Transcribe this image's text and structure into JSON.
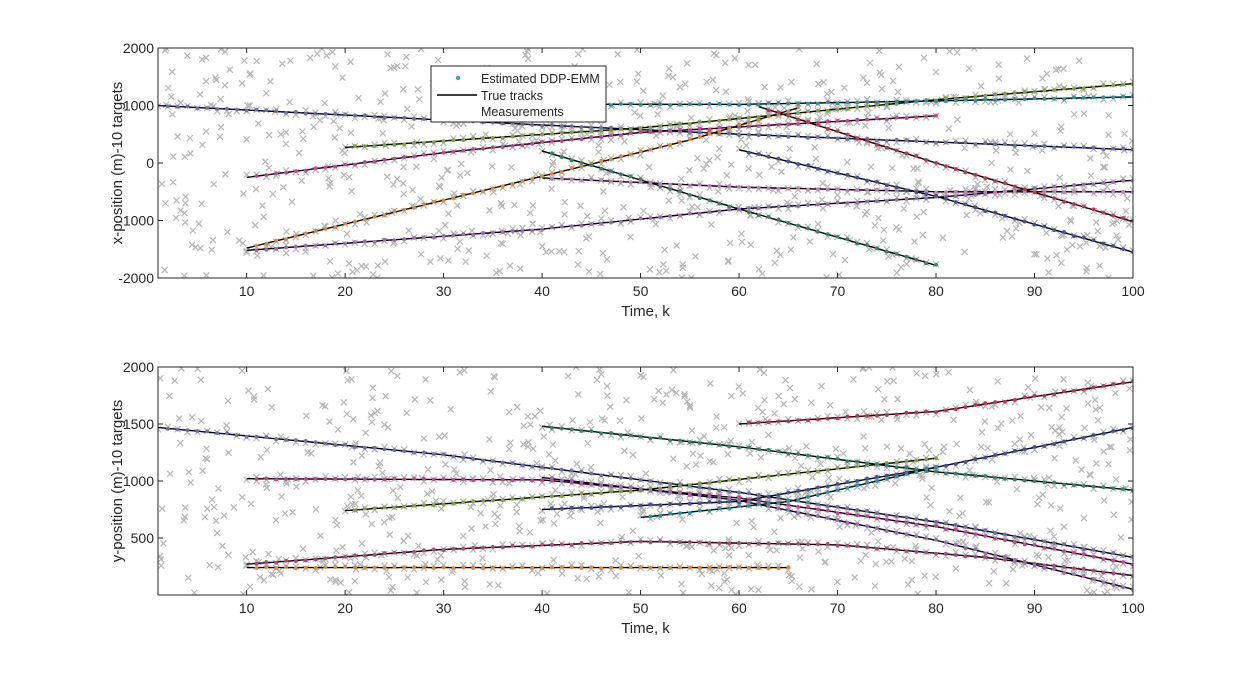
{
  "chart_data": [
    {
      "type": "line",
      "ylabel": "x-position (m)-10 targets",
      "xlabel": "Time, k",
      "xlim": [
        1,
        100
      ],
      "ylim": [
        -2000,
        2000
      ],
      "xticks": [
        10,
        20,
        30,
        40,
        50,
        60,
        70,
        80,
        90,
        100
      ],
      "yticks": [
        -2000,
        -1000,
        0,
        1000,
        2000
      ],
      "grid": false,
      "legend": {
        "position": "top-center",
        "entries": [
          "Estimated DDP-EMM",
          "True tracks",
          "Measurements"
        ]
      },
      "series": [
        {
          "name": "True tracks",
          "tracks": [
            {
              "color": "#6b6fb5",
              "points": [
                [
                  1,
                  1000
                ],
                [
                  40,
                  660
                ],
                [
                  60,
                  500
                ],
                [
                  100,
                  230
                ]
              ]
            },
            {
              "color": "#d63d9b",
              "points": [
                [
                  10,
                  -250
                ],
                [
                  30,
                  180
                ],
                [
                  50,
                  530
                ],
                [
                  80,
                  820
                ]
              ]
            },
            {
              "color": "#7ea832",
              "points": [
                [
                  20,
                  270
                ],
                [
                  50,
                  610
                ],
                [
                  80,
                  1100
                ],
                [
                  100,
                  1380
                ]
              ]
            },
            {
              "color": "#e08a2b",
              "points": [
                [
                  10,
                  -1480
                ],
                [
                  40,
                  -230
                ],
                [
                  55,
                  400
                ],
                [
                  66,
                  960
                ]
              ]
            },
            {
              "color": "#2c8a6a",
              "points": [
                [
                  40,
                  210
                ],
                [
                  60,
                  -800
                ],
                [
                  80,
                  -1780
                ]
              ]
            },
            {
              "color": "#9e6bb8",
              "points": [
                [
                  10,
                  -1520
                ],
                [
                  40,
                  -1150
                ],
                [
                  60,
                  -800
                ],
                [
                  80,
                  -600
                ],
                [
                  100,
                  -300
                ]
              ]
            },
            {
              "color": "#c77ec0",
              "points": [
                [
                  40,
                  -260
                ],
                [
                  60,
                  -420
                ],
                [
                  80,
                  -500
                ],
                [
                  100,
                  -500
                ]
              ]
            },
            {
              "color": "#3c52a8",
              "points": [
                [
                  60,
                  230
                ],
                [
                  80,
                  -580
                ],
                [
                  100,
                  -1550
                ]
              ]
            },
            {
              "color": "#d62b50",
              "points": [
                [
                  62,
                  980
                ],
                [
                  80,
                  0
                ],
                [
                  100,
                  -1020
                ]
              ]
            },
            {
              "color": "#1f9aa8",
              "points": [
                [
                  40,
                  1020
                ],
                [
                  60,
                  1020
                ],
                [
                  80,
                  1080
                ],
                [
                  100,
                  1150
                ]
              ]
            }
          ]
        },
        {
          "name": "Estimated DDP-EMM",
          "clutter_seed": 7
        }
      ]
    },
    {
      "type": "line",
      "ylabel": "y-position (m)-10 targets",
      "xlabel": "Time, k",
      "xlim": [
        1,
        100
      ],
      "ylim": [
        0,
        2000
      ],
      "xticks": [
        10,
        20,
        30,
        40,
        50,
        60,
        70,
        80,
        90,
        100
      ],
      "yticks": [
        500,
        1000,
        1500,
        2000
      ],
      "grid": false,
      "series": [
        {
          "name": "True tracks",
          "tracks": [
            {
              "color": "#6b6fb5",
              "points": [
                [
                  1,
                  1470
                ],
                [
                  30,
                  1230
                ],
                [
                  60,
                  900
                ],
                [
                  80,
                  640
                ],
                [
                  100,
                  330
                ]
              ]
            },
            {
              "color": "#d63d9b",
              "points": [
                [
                  10,
                  1020
                ],
                [
                  40,
                  1010
                ],
                [
                  60,
                  850
                ],
                [
                  80,
                  600
                ],
                [
                  100,
                  270
                ]
              ]
            },
            {
              "color": "#7ea832",
              "points": [
                [
                  20,
                  740
                ],
                [
                  50,
                  920
                ],
                [
                  80,
                  1200
                ]
              ]
            },
            {
              "color": "#e08a2b",
              "points": [
                [
                  10,
                  240
                ],
                [
                  40,
                  240
                ],
                [
                  65,
                  240
                ]
              ]
            },
            {
              "color": "#b8457e",
              "points": [
                [
                  10,
                  270
                ],
                [
                  30,
                  400
                ],
                [
                  50,
                  470
                ],
                [
                  70,
                  440
                ],
                [
                  85,
                  330
                ],
                [
                  100,
                  170
                ]
              ]
            },
            {
              "color": "#2c8a6a",
              "points": [
                [
                  40,
                  1480
                ],
                [
                  60,
                  1300
                ],
                [
                  80,
                  1080
                ],
                [
                  100,
                  920
                ]
              ]
            },
            {
              "color": "#3c52a8",
              "points": [
                [
                  40,
                  750
                ],
                [
                  60,
                  820
                ],
                [
                  80,
                  1120
                ],
                [
                  100,
                  1470
                ]
              ]
            },
            {
              "color": "#d62b50",
              "points": [
                [
                  60,
                  1500
                ],
                [
                  80,
                  1610
                ],
                [
                  100,
                  1870
                ]
              ]
            },
            {
              "color": "#9e6bb8",
              "points": [
                [
                  40,
                  1030
                ],
                [
                  60,
                  830
                ],
                [
                  80,
                  480
                ],
                [
                  100,
                  50
                ]
              ]
            },
            {
              "color": "#1f9aa8",
              "points": [
                [
                  50,
                  680
                ],
                [
                  65,
                  820
                ],
                [
                  80,
                  1120
                ]
              ]
            }
          ]
        },
        {
          "name": "Estimated DDP-EMM",
          "clutter_seed": 13
        }
      ]
    }
  ]
}
